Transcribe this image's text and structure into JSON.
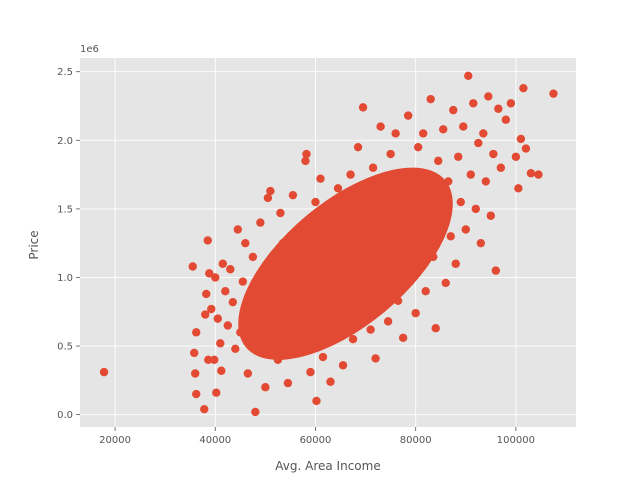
{
  "chart_data": {
    "type": "scatter",
    "title": "",
    "xlabel": "Avg. Area Income",
    "ylabel": "Price",
    "y_offset_label": "1e6",
    "xlim": [
      13000,
      112000
    ],
    "ylim": [
      -90000,
      2600000
    ],
    "x_ticks": [
      {
        "value": 20000,
        "label": "20000"
      },
      {
        "value": 40000,
        "label": "40000"
      },
      {
        "value": 60000,
        "label": "60000"
      },
      {
        "value": 80000,
        "label": "80000"
      },
      {
        "value": 100000,
        "label": "100000"
      }
    ],
    "y_ticks": [
      {
        "value": 0,
        "label": "0.0"
      },
      {
        "value": 500000,
        "label": "0.5"
      },
      {
        "value": 1000000,
        "label": "1.0"
      },
      {
        "value": 1500000,
        "label": "1.5"
      },
      {
        "value": 2000000,
        "label": "2.0"
      },
      {
        "value": 2500000,
        "label": "2.5"
      }
    ],
    "grid": true,
    "background_color": "#E5E5E5",
    "grid_color": "#FFFFFF",
    "point_color": "#E24A33",
    "series": [
      {
        "values_xy": [
          [
            17800,
            310000
          ],
          [
            35500,
            1080000
          ],
          [
            35800,
            450000
          ],
          [
            36000,
            300000
          ],
          [
            36200,
            600000
          ],
          [
            36200,
            150000
          ],
          [
            37800,
            40000
          ],
          [
            38000,
            730000
          ],
          [
            38200,
            880000
          ],
          [
            38500,
            1270000
          ],
          [
            38600,
            400000
          ],
          [
            38800,
            1030000
          ],
          [
            39200,
            770000
          ],
          [
            39800,
            400000
          ],
          [
            40000,
            1000000
          ],
          [
            40200,
            160000
          ],
          [
            40500,
            700000
          ],
          [
            41000,
            520000
          ],
          [
            41200,
            320000
          ],
          [
            41500,
            1100000
          ],
          [
            42000,
            900000
          ],
          [
            42500,
            650000
          ],
          [
            43000,
            1060000
          ],
          [
            43500,
            820000
          ],
          [
            44000,
            480000
          ],
          [
            44500,
            1350000
          ],
          [
            45000,
            600000
          ],
          [
            45500,
            970000
          ],
          [
            46000,
            1250000
          ],
          [
            46500,
            300000
          ],
          [
            47000,
            750000
          ],
          [
            47500,
            1150000
          ],
          [
            48000,
            20000
          ],
          [
            48500,
            530000
          ],
          [
            49000,
            1400000
          ],
          [
            49500,
            860000
          ],
          [
            50000,
            200000
          ],
          [
            50500,
            1580000
          ],
          [
            51000,
            1630000
          ],
          [
            51500,
            700000
          ],
          [
            52000,
            1020000
          ],
          [
            52500,
            400000
          ],
          [
            53000,
            1470000
          ],
          [
            53500,
            1250000
          ],
          [
            54000,
            910000
          ],
          [
            54500,
            230000
          ],
          [
            55000,
            620000
          ],
          [
            55500,
            1600000
          ],
          [
            56000,
            1150000
          ],
          [
            56500,
            480000
          ],
          [
            57000,
            770000
          ],
          [
            57500,
            1380000
          ],
          [
            58000,
            1850000
          ],
          [
            58200,
            1900000
          ],
          [
            58500,
            1050000
          ],
          [
            59000,
            310000
          ],
          [
            59500,
            640000
          ],
          [
            60000,
            1550000
          ],
          [
            60200,
            100000
          ],
          [
            60500,
            880000
          ],
          [
            61000,
            1720000
          ],
          [
            61500,
            420000
          ],
          [
            62000,
            1200000
          ],
          [
            62500,
            980000
          ],
          [
            63000,
            240000
          ],
          [
            63500,
            1450000
          ],
          [
            64000,
            700000
          ],
          [
            64500,
            1650000
          ],
          [
            65000,
            1100000
          ],
          [
            65500,
            360000
          ],
          [
            66000,
            1330000
          ],
          [
            66500,
            860000
          ],
          [
            67000,
            1750000
          ],
          [
            67500,
            550000
          ],
          [
            68000,
            1250000
          ],
          [
            68500,
            1950000
          ],
          [
            69000,
            930000
          ],
          [
            69500,
            2240000
          ],
          [
            70000,
            1500000
          ],
          [
            70500,
            1050000
          ],
          [
            71000,
            620000
          ],
          [
            71500,
            1800000
          ],
          [
            72000,
            410000
          ],
          [
            72500,
            1350000
          ],
          [
            73000,
            2100000
          ],
          [
            73500,
            950000
          ],
          [
            74000,
            1650000
          ],
          [
            74500,
            680000
          ],
          [
            75000,
            1900000
          ],
          [
            75500,
            1200000
          ],
          [
            76000,
            2050000
          ],
          [
            76500,
            830000
          ],
          [
            77000,
            1450000
          ],
          [
            77500,
            560000
          ],
          [
            78000,
            1750000
          ],
          [
            78500,
            2180000
          ],
          [
            79000,
            1050000
          ],
          [
            79500,
            1550000
          ],
          [
            80000,
            740000
          ],
          [
            80500,
            1950000
          ],
          [
            81000,
            1300000
          ],
          [
            81500,
            2050000
          ],
          [
            82000,
            900000
          ],
          [
            82500,
            1650000
          ],
          [
            83000,
            2300000
          ],
          [
            83500,
            1150000
          ],
          [
            84000,
            630000
          ],
          [
            84500,
            1850000
          ],
          [
            85000,
            1450000
          ],
          [
            85500,
            2080000
          ],
          [
            86000,
            960000
          ],
          [
            86500,
            1700000
          ],
          [
            87000,
            1300000
          ],
          [
            87500,
            2220000
          ],
          [
            88000,
            1100000
          ],
          [
            88500,
            1880000
          ],
          [
            89000,
            1550000
          ],
          [
            89500,
            2100000
          ],
          [
            90000,
            1350000
          ],
          [
            90500,
            2470000
          ],
          [
            91000,
            1750000
          ],
          [
            91500,
            2270000
          ],
          [
            92000,
            1500000
          ],
          [
            92500,
            1980000
          ],
          [
            93000,
            1250000
          ],
          [
            93500,
            2050000
          ],
          [
            94000,
            1700000
          ],
          [
            94500,
            2320000
          ],
          [
            95000,
            1450000
          ],
          [
            95500,
            1900000
          ],
          [
            96000,
            1050000
          ],
          [
            96500,
            2230000
          ],
          [
            97000,
            1800000
          ],
          [
            98000,
            2150000
          ],
          [
            99000,
            2270000
          ],
          [
            100000,
            1880000
          ],
          [
            100500,
            1650000
          ],
          [
            101000,
            2010000
          ],
          [
            101500,
            2380000
          ],
          [
            102000,
            1940000
          ],
          [
            103000,
            1760000
          ],
          [
            104500,
            1750000
          ],
          [
            107500,
            2340000
          ]
        ]
      }
    ]
  }
}
